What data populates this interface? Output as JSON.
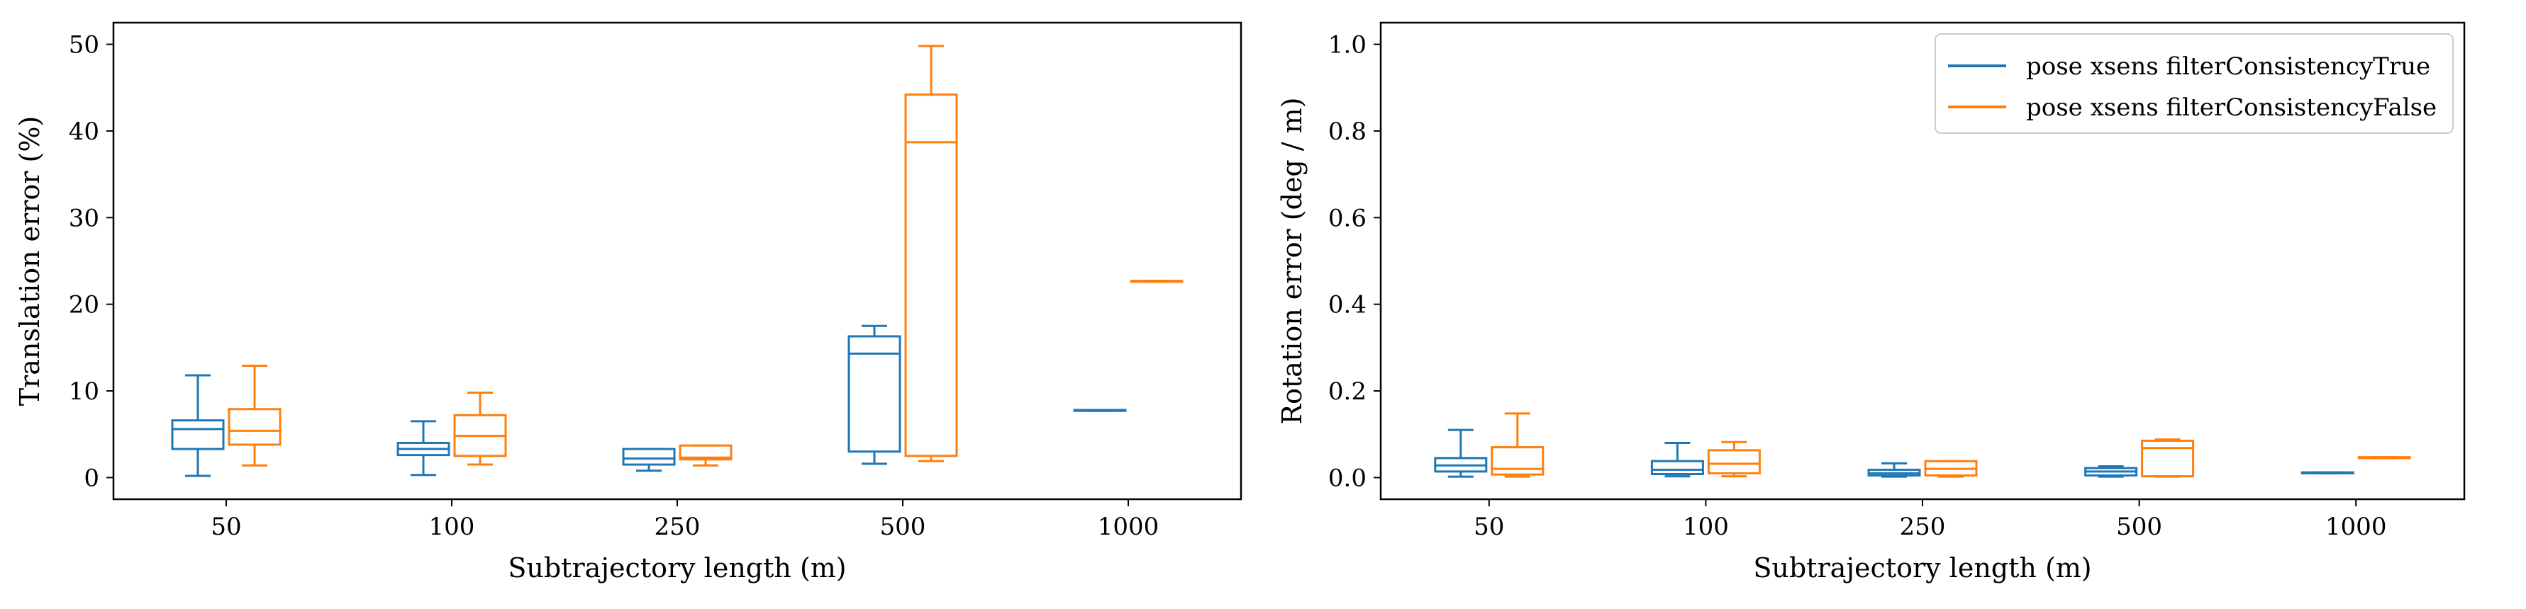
{
  "colors": {
    "true_series": "#1f77b4",
    "false_series": "#ff7f0e",
    "axes": "#000000",
    "background": "#ffffff"
  },
  "chart_data": [
    {
      "type": "box",
      "xlabel": "Subtrajectory length (m)",
      "ylabel": "Translation error (%)",
      "categories": [
        "50",
        "100",
        "250",
        "500",
        "1000"
      ],
      "ylim": [
        -2.5,
        52.5
      ],
      "yticks": [
        0,
        10,
        20,
        30,
        40,
        50
      ],
      "grid": false,
      "legend": null,
      "series": [
        {
          "name": "pose xsens filterConsistencyTrue",
          "color": "#1f77b4",
          "boxes": [
            {
              "whislo": 0.2,
              "q1": 3.3,
              "med": 5.6,
              "q3": 6.6,
              "whishi": 11.8
            },
            {
              "whislo": 0.3,
              "q1": 2.6,
              "med": 3.3,
              "q3": 4.0,
              "whishi": 6.5
            },
            {
              "whislo": 0.8,
              "q1": 1.5,
              "med": 2.2,
              "q3": 3.3,
              "whishi": 3.3
            },
            {
              "whislo": 1.6,
              "q1": 3.0,
              "med": 14.3,
              "q3": 16.3,
              "whishi": 17.5
            },
            {
              "whislo": 7.7,
              "q1": 7.7,
              "med": 7.75,
              "q3": 7.8,
              "whishi": 7.8
            }
          ]
        },
        {
          "name": "pose xsens filterConsistencyFalse",
          "color": "#ff7f0e",
          "boxes": [
            {
              "whislo": 1.4,
              "q1": 3.8,
              "med": 5.4,
              "q3": 7.9,
              "whishi": 12.9
            },
            {
              "whislo": 1.5,
              "q1": 2.5,
              "med": 4.8,
              "q3": 7.2,
              "whishi": 9.8
            },
            {
              "whislo": 1.4,
              "q1": 2.1,
              "med": 2.3,
              "q3": 3.7,
              "whishi": 3.7
            },
            {
              "whislo": 1.9,
              "q1": 2.5,
              "med": 38.7,
              "q3": 44.2,
              "whishi": 49.8
            },
            {
              "whislo": 22.6,
              "q1": 22.6,
              "med": 22.65,
              "q3": 22.7,
              "whishi": 22.7
            }
          ]
        }
      ]
    },
    {
      "type": "box",
      "xlabel": "Subtrajectory length (m)",
      "ylabel": "Rotation error (deg / m)",
      "categories": [
        "50",
        "100",
        "250",
        "500",
        "1000"
      ],
      "ylim": [
        -0.05,
        1.05
      ],
      "yticks": [
        0.0,
        0.2,
        0.4,
        0.6,
        0.8,
        1.0
      ],
      "ytick_labels": [
        "0.0",
        "0.2",
        "0.4",
        "0.6",
        "0.8",
        "1.0"
      ],
      "grid": false,
      "legend": "top-right",
      "series": [
        {
          "name": "pose xsens filterConsistencyTrue",
          "color": "#1f77b4",
          "boxes": [
            {
              "whislo": 0.002,
              "q1": 0.014,
              "med": 0.028,
              "q3": 0.045,
              "whishi": 0.11
            },
            {
              "whislo": 0.003,
              "q1": 0.008,
              "med": 0.018,
              "q3": 0.038,
              "whishi": 0.08
            },
            {
              "whislo": 0.002,
              "q1": 0.005,
              "med": 0.01,
              "q3": 0.018,
              "whishi": 0.033
            },
            {
              "whislo": 0.002,
              "q1": 0.005,
              "med": 0.014,
              "q3": 0.022,
              "whishi": 0.026
            },
            {
              "whislo": 0.01,
              "q1": 0.01,
              "med": 0.011,
              "q3": 0.012,
              "whishi": 0.012
            }
          ]
        },
        {
          "name": "pose xsens filterConsistencyFalse",
          "color": "#ff7f0e",
          "boxes": [
            {
              "whislo": 0.002,
              "q1": 0.007,
              "med": 0.02,
              "q3": 0.07,
              "whishi": 0.148
            },
            {
              "whislo": 0.003,
              "q1": 0.01,
              "med": 0.032,
              "q3": 0.063,
              "whishi": 0.082
            },
            {
              "whislo": 0.002,
              "q1": 0.005,
              "med": 0.02,
              "q3": 0.038,
              "whishi": 0.038
            },
            {
              "whislo": 0.002,
              "q1": 0.003,
              "med": 0.068,
              "q3": 0.085,
              "whishi": 0.088
            },
            {
              "whislo": 0.045,
              "q1": 0.045,
              "med": 0.046,
              "q3": 0.047,
              "whishi": 0.047
            }
          ]
        }
      ]
    }
  ]
}
